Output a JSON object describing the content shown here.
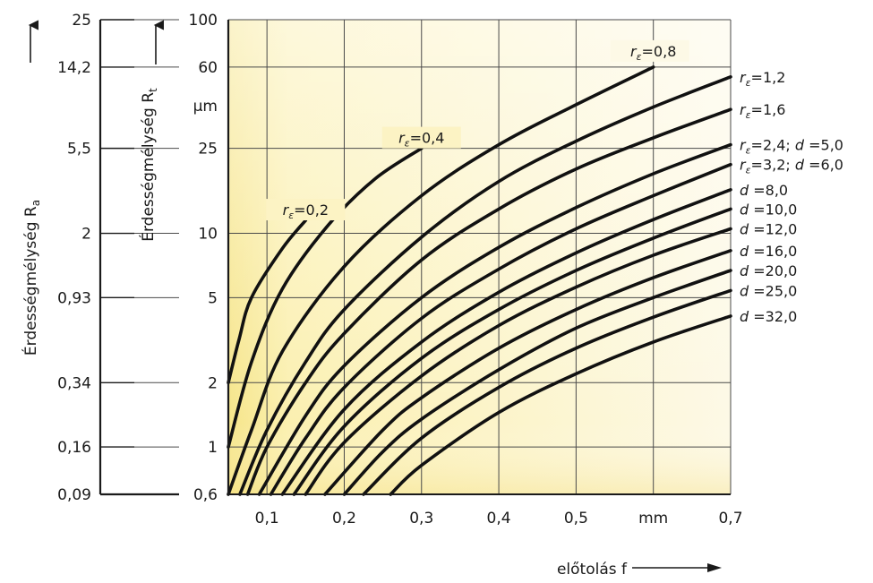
{
  "chart_data": {
    "type": "line",
    "xlabel": "előtolás f",
    "x_unit": "mm",
    "y_unit": "µm",
    "ylabel_rt": "Érdességmélység R",
    "ylabel_rt_sub": "t",
    "ylabel_ra": "Érdességmélység R",
    "ylabel_ra_sub": "a",
    "x_ticks": [
      "0,1",
      "0,2",
      "0,3",
      "0,4",
      "0,5",
      "mm",
      "0,7"
    ],
    "x_tick_values": [
      0.1,
      0.2,
      0.3,
      0.4,
      0.5,
      0.6,
      0.7
    ],
    "xlim": [
      0.05,
      0.7
    ],
    "ylim": [
      0.6,
      100
    ],
    "y_scale": "log",
    "rt_ticks": [
      {
        "value": 100,
        "label": "100"
      },
      {
        "value": 60,
        "label": "60"
      },
      {
        "value": 25,
        "label": "25"
      },
      {
        "value": 10,
        "label": "10"
      },
      {
        "value": 5,
        "label": "5"
      },
      {
        "value": 2,
        "label": "2"
      },
      {
        "value": 1,
        "label": "1"
      },
      {
        "value": 0.6,
        "label": "0,6"
      }
    ],
    "rt_unit_label": "µm",
    "ra_ticks": [
      {
        "rt": 100,
        "label": "25"
      },
      {
        "rt": 60,
        "label": "14,2"
      },
      {
        "rt": 25,
        "label": "5,5"
      },
      {
        "rt": 10,
        "label": "2"
      },
      {
        "rt": 5,
        "label": "0,93"
      },
      {
        "rt": 2,
        "label": "0,34"
      },
      {
        "rt": 1,
        "label": "0,16"
      },
      {
        "rt": 0.6,
        "label": "0,09"
      }
    ],
    "grid": true,
    "series": [
      {
        "r": "0,2",
        "d": "",
        "label_pos": "top",
        "points": [
          [
            0.05,
            2.0
          ],
          [
            0.064,
            3.2
          ],
          [
            0.08,
            5.0
          ],
          [
            0.12,
            8.5
          ],
          [
            0.15,
            11.5
          ]
        ]
      },
      {
        "r": "0,4",
        "d": "",
        "label_pos": "top",
        "points": [
          [
            0.05,
            1.0
          ],
          [
            0.08,
            2.5
          ],
          [
            0.12,
            5.5
          ],
          [
            0.18,
            11.0
          ],
          [
            0.24,
            18.0
          ],
          [
            0.3,
            25.0
          ]
        ]
      },
      {
        "r": "0,8",
        "d": "",
        "label_pos": "top",
        "points": [
          [
            0.05,
            0.6
          ],
          [
            0.08,
            1.2
          ],
          [
            0.12,
            2.8
          ],
          [
            0.2,
            7.0
          ],
          [
            0.3,
            15.0
          ],
          [
            0.4,
            26.0
          ],
          [
            0.5,
            40.0
          ],
          [
            0.6,
            60.0
          ]
        ]
      },
      {
        "r": "1,2",
        "d": "",
        "label_pos": "right",
        "points": [
          [
            0.065,
            0.6
          ],
          [
            0.1,
            1.2
          ],
          [
            0.15,
            2.5
          ],
          [
            0.2,
            4.4
          ],
          [
            0.3,
            9.6
          ],
          [
            0.4,
            17.5
          ],
          [
            0.5,
            27.0
          ],
          [
            0.6,
            39.0
          ],
          [
            0.7,
            54.0
          ]
        ]
      },
      {
        "r": "1,6",
        "d": "",
        "label_pos": "right",
        "points": [
          [
            0.075,
            0.6
          ],
          [
            0.1,
            1.0
          ],
          [
            0.15,
            2.0
          ],
          [
            0.2,
            3.4
          ],
          [
            0.3,
            7.5
          ],
          [
            0.4,
            13.0
          ],
          [
            0.5,
            20.0
          ],
          [
            0.6,
            28.0
          ],
          [
            0.7,
            38.0
          ]
        ]
      },
      {
        "r": "2,4",
        "d": "5,0",
        "label_pos": "right",
        "points": [
          [
            0.09,
            0.6
          ],
          [
            0.15,
            1.4
          ],
          [
            0.2,
            2.4
          ],
          [
            0.3,
            5.0
          ],
          [
            0.4,
            8.6
          ],
          [
            0.5,
            13.2
          ],
          [
            0.6,
            19.0
          ],
          [
            0.7,
            26.0
          ]
        ]
      },
      {
        "r": "3,2",
        "d": "6,0",
        "label_pos": "right",
        "points": [
          [
            0.105,
            0.6
          ],
          [
            0.15,
            1.1
          ],
          [
            0.2,
            1.9
          ],
          [
            0.3,
            4.0
          ],
          [
            0.4,
            6.8
          ],
          [
            0.5,
            10.5
          ],
          [
            0.6,
            15.0
          ],
          [
            0.7,
            21.0
          ]
        ]
      },
      {
        "r": "",
        "d": "8,0",
        "label_pos": "right",
        "points": [
          [
            0.12,
            0.6
          ],
          [
            0.2,
            1.5
          ],
          [
            0.3,
            3.1
          ],
          [
            0.4,
            5.3
          ],
          [
            0.5,
            8.1
          ],
          [
            0.6,
            11.6
          ],
          [
            0.7,
            16.0
          ]
        ]
      },
      {
        "r": "",
        "d": "10,0",
        "label_pos": "right",
        "points": [
          [
            0.135,
            0.6
          ],
          [
            0.2,
            1.25
          ],
          [
            0.3,
            2.6
          ],
          [
            0.4,
            4.4
          ],
          [
            0.5,
            6.7
          ],
          [
            0.6,
            9.5
          ],
          [
            0.7,
            13.0
          ]
        ]
      },
      {
        "r": "",
        "d": "12,0",
        "label_pos": "right",
        "points": [
          [
            0.15,
            0.6
          ],
          [
            0.2,
            1.05
          ],
          [
            0.3,
            2.15
          ],
          [
            0.4,
            3.7
          ],
          [
            0.5,
            5.6
          ],
          [
            0.6,
            7.9
          ],
          [
            0.7,
            10.5
          ]
        ]
      },
      {
        "r": "",
        "d": "16,0",
        "label_pos": "right",
        "points": [
          [
            0.175,
            0.6
          ],
          [
            0.25,
            1.2
          ],
          [
            0.3,
            1.7
          ],
          [
            0.4,
            2.9
          ],
          [
            0.5,
            4.4
          ],
          [
            0.6,
            6.2
          ],
          [
            0.7,
            8.3
          ]
        ]
      },
      {
        "r": "",
        "d": "20,0",
        "label_pos": "right",
        "points": [
          [
            0.2,
            0.6
          ],
          [
            0.25,
            0.95
          ],
          [
            0.3,
            1.35
          ],
          [
            0.4,
            2.3
          ],
          [
            0.5,
            3.6
          ],
          [
            0.6,
            5.0
          ],
          [
            0.7,
            6.7
          ]
        ]
      },
      {
        "r": "",
        "d": "25,0",
        "label_pos": "right",
        "points": [
          [
            0.225,
            0.6
          ],
          [
            0.3,
            1.1
          ],
          [
            0.4,
            1.9
          ],
          [
            0.5,
            2.9
          ],
          [
            0.6,
            4.05
          ],
          [
            0.7,
            5.4
          ]
        ]
      },
      {
        "r": "",
        "d": "32,0",
        "label_pos": "right",
        "points": [
          [
            0.26,
            0.6
          ],
          [
            0.3,
            0.82
          ],
          [
            0.4,
            1.45
          ],
          [
            0.5,
            2.2
          ],
          [
            0.6,
            3.1
          ],
          [
            0.7,
            4.1
          ]
        ]
      }
    ]
  }
}
